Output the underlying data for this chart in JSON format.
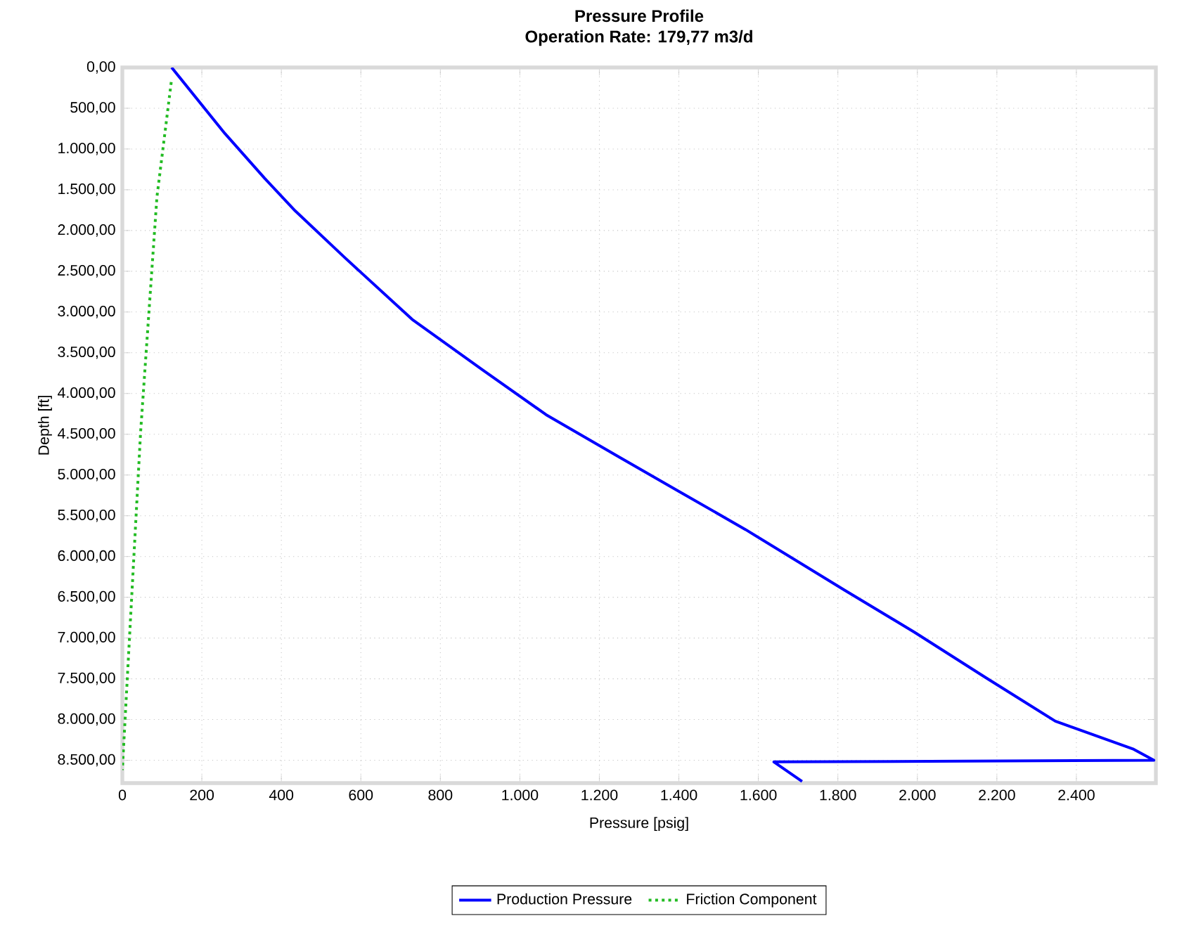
{
  "chart_data": {
    "type": "line",
    "title": "Pressure Profile",
    "subtitle": "Operation Rate: 179,77 m3/d",
    "xlabel": "Pressure [psig]",
    "ylabel": "Depth  [ft]",
    "xlim": [
      0,
      2600
    ],
    "ylim": [
      8780,
      0
    ],
    "xticks": [
      0,
      200,
      400,
      600,
      800,
      {
        "value": 1000,
        "label": "1.000"
      },
      {
        "value": 1200,
        "label": "1.200"
      },
      {
        "value": 1400,
        "label": "1.400"
      },
      {
        "value": 1600,
        "label": "1.600"
      },
      {
        "value": 1800,
        "label": "1.800"
      },
      {
        "value": 2000,
        "label": "2.000"
      },
      {
        "value": 2200,
        "label": "2.200"
      },
      {
        "value": 2400,
        "label": "2.400"
      }
    ],
    "yticks": [
      {
        "value": 0,
        "label": "0,00"
      },
      {
        "value": 500,
        "label": "500,00"
      },
      {
        "value": 1000,
        "label": "1.000,00"
      },
      {
        "value": 1500,
        "label": "1.500,00"
      },
      {
        "value": 2000,
        "label": "2.000,00"
      },
      {
        "value": 2500,
        "label": "2.500,00"
      },
      {
        "value": 3000,
        "label": "3.000,00"
      },
      {
        "value": 3500,
        "label": "3.500,00"
      },
      {
        "value": 4000,
        "label": "4.000,00"
      },
      {
        "value": 4500,
        "label": "4.500,00"
      },
      {
        "value": 5000,
        "label": "5.000,00"
      },
      {
        "value": 5500,
        "label": "5.500,00"
      },
      {
        "value": 6000,
        "label": "6.000,00"
      },
      {
        "value": 6500,
        "label": "6.500,00"
      },
      {
        "value": 7000,
        "label": "7.000,00"
      },
      {
        "value": 7500,
        "label": "7.500,00"
      },
      {
        "value": 8000,
        "label": "8.000,00"
      },
      {
        "value": 8500,
        "label": "8.500,00"
      }
    ],
    "grid": true,
    "legend": "bottom",
    "marker": "none",
    "series": [
      {
        "name": "Production Pressure",
        "color": "#0000ff",
        "line_style": "solid",
        "x": [
          124,
          258,
          358,
          435,
          559,
          729,
          906,
          1066,
          1250,
          1400,
          1568,
          1816,
          1993,
          2170,
          2347,
          2542,
          2595,
          1639,
          1710
        ],
        "values": [
          0,
          810,
          1360,
          1760,
          2330,
          3090,
          3710,
          4260,
          4780,
          5200,
          5670,
          6410,
          6930,
          7480,
          8020,
          8360,
          8500,
          8520,
          8760
        ]
      },
      {
        "name": "Friction Component",
        "color": "#22bb22",
        "line_style": "dotted",
        "x": [
          123,
          87,
          46,
          0
        ],
        "values": [
          180,
          1590,
          4470,
          8620
        ]
      }
    ]
  }
}
